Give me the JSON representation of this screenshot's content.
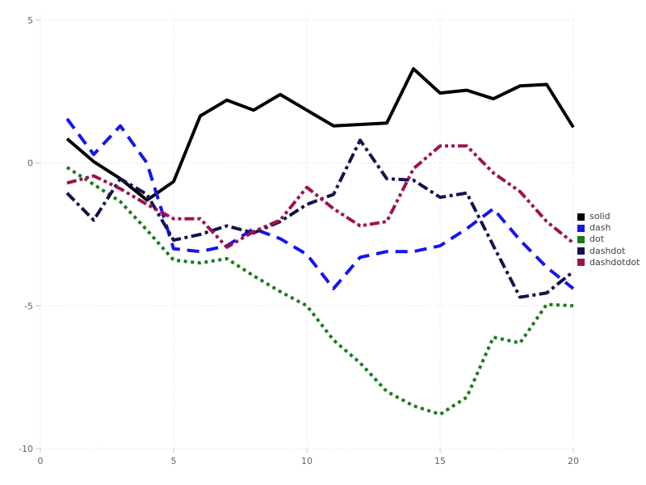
{
  "chart_data": {
    "type": "line",
    "title": "",
    "xlabel": "",
    "ylabel": "",
    "xlim": [
      0,
      20
    ],
    "ylim": [
      -10,
      5
    ],
    "x_ticks": [
      "0",
      "5",
      "10",
      "15",
      "20"
    ],
    "x_tick_values": [
      0,
      5,
      10,
      15,
      20
    ],
    "y_ticks": [
      "5",
      "0",
      "-5",
      "-10"
    ],
    "y_tick_values": [
      5,
      0,
      -5,
      -10
    ],
    "grid": "dotted",
    "legend_position": "right",
    "x": [
      1,
      2,
      3,
      4,
      5,
      6,
      7,
      8,
      9,
      10,
      11,
      12,
      13,
      14,
      15,
      16,
      17,
      18,
      19,
      20
    ],
    "series": [
      {
        "name": "solid",
        "color": "#000000",
        "dash": "solid",
        "values": [
          0.85,
          0.05,
          -0.55,
          -1.3,
          -0.65,
          1.65,
          2.2,
          1.85,
          2.4,
          1.85,
          1.3,
          1.35,
          1.4,
          3.3,
          2.45,
          2.55,
          2.25,
          2.7,
          2.75,
          1.25
        ]
      },
      {
        "name": "dash",
        "color": "#1414f0",
        "dash": "dash",
        "values": [
          1.55,
          0.3,
          1.3,
          0.0,
          -3.0,
          -3.1,
          -2.9,
          -2.3,
          -2.65,
          -3.2,
          -4.4,
          -3.3,
          -3.1,
          -3.1,
          -2.9,
          -2.3,
          -1.6,
          -2.7,
          -3.65,
          -4.4
        ]
      },
      {
        "name": "dot",
        "color": "#1b7a1b",
        "dash": "dot",
        "values": [
          -0.15,
          -0.75,
          -1.35,
          -2.35,
          -3.4,
          -3.5,
          -3.35,
          -3.95,
          -4.5,
          -5.0,
          -6.2,
          -7.0,
          -8.0,
          -8.5,
          -8.8,
          -8.2,
          -6.1,
          -6.3,
          -4.95,
          -5.0
        ]
      },
      {
        "name": "dashdot",
        "color": "#12124d",
        "dash": "dashdot",
        "values": [
          -1.05,
          -2.0,
          -0.55,
          -1.1,
          -2.7,
          -2.5,
          -2.2,
          -2.45,
          -2.05,
          -1.45,
          -1.1,
          0.8,
          -0.55,
          -0.6,
          -1.2,
          -1.05,
          -2.9,
          -4.7,
          -4.55,
          -3.8
        ]
      },
      {
        "name": "dashdotdot",
        "color": "#9e1150",
        "dash": "dashdotdot",
        "values": [
          -0.7,
          -0.45,
          -0.9,
          -1.45,
          -1.95,
          -1.95,
          -2.95,
          -2.4,
          -2.0,
          -0.85,
          -1.6,
          -2.2,
          -2.05,
          -0.2,
          0.6,
          0.6,
          -0.35,
          -1.0,
          -2.05,
          -2.8
        ]
      }
    ],
    "colors": {
      "grid": "#dcdce8",
      "tick": "#c4c4cf",
      "tick_text": "#62626a",
      "legend_text": "#3f3f3f",
      "background": "#ffffff"
    }
  }
}
